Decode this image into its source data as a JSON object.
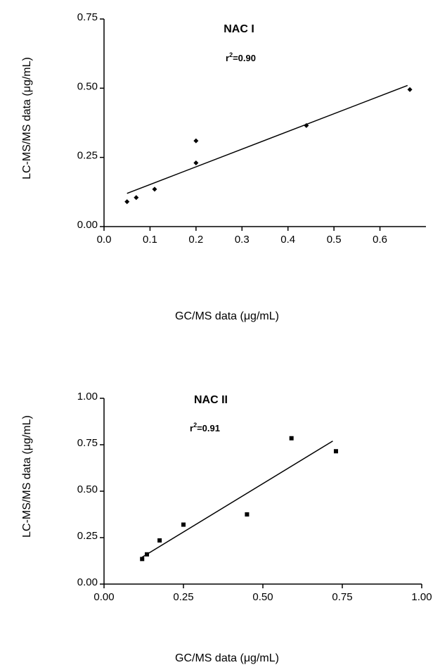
{
  "chart_data": [
    {
      "type": "scatter",
      "title": "NAC I",
      "annotation": {
        "prefix": "r",
        "superscript": "2",
        "value": "=0.90"
      },
      "xlabel": "GC/MS data (μg/mL)",
      "ylabel": "LC-MS/MS data (μg/mL)",
      "xlim": [
        0.0,
        0.7
      ],
      "ylim": [
        0.0,
        0.75
      ],
      "xticks": [
        0.0,
        0.1,
        0.2,
        0.3,
        0.4,
        0.5,
        0.6
      ],
      "xtick_labels": [
        "0.0",
        "0.1",
        "0.2",
        "0.3",
        "0.4",
        "0.5",
        "0.6"
      ],
      "yticks": [
        0.0,
        0.25,
        0.5,
        0.75
      ],
      "ytick_labels": [
        "0.00",
        "0.25",
        "0.50",
        "0.75"
      ],
      "marker": "diamond",
      "points": [
        {
          "x": 0.05,
          "y": 0.09
        },
        {
          "x": 0.07,
          "y": 0.105
        },
        {
          "x": 0.11,
          "y": 0.135
        },
        {
          "x": 0.2,
          "y": 0.23
        },
        {
          "x": 0.2,
          "y": 0.31
        },
        {
          "x": 0.44,
          "y": 0.365
        },
        {
          "x": 0.665,
          "y": 0.495
        }
      ],
      "fit_line": {
        "x": [
          0.05,
          0.66
        ],
        "y": [
          0.12,
          0.51
        ]
      }
    },
    {
      "type": "scatter",
      "title": "NAC II",
      "annotation": {
        "prefix": "r",
        "superscript": "2",
        "value": "=0.91"
      },
      "xlabel": "GC/MS data (μg/mL)",
      "ylabel": "LC-MS/MS data (μg/mL)",
      "xlim": [
        0.0,
        1.0
      ],
      "ylim": [
        0.0,
        1.0
      ],
      "xticks": [
        0.0,
        0.25,
        0.5,
        0.75,
        1.0
      ],
      "xtick_labels": [
        "0.00",
        "0.25",
        "0.50",
        "0.75",
        "1.00"
      ],
      "yticks": [
        0.0,
        0.25,
        0.5,
        0.75,
        1.0
      ],
      "ytick_labels": [
        "0.00",
        "0.25",
        "0.50",
        "0.75",
        "1.00"
      ],
      "marker": "square",
      "points": [
        {
          "x": 0.12,
          "y": 0.135
        },
        {
          "x": 0.135,
          "y": 0.16
        },
        {
          "x": 0.175,
          "y": 0.235
        },
        {
          "x": 0.25,
          "y": 0.32
        },
        {
          "x": 0.45,
          "y": 0.375
        },
        {
          "x": 0.59,
          "y": 0.785
        },
        {
          "x": 0.73,
          "y": 0.715
        }
      ],
      "fit_line": {
        "x": [
          0.12,
          0.72
        ],
        "y": [
          0.145,
          0.77
        ]
      }
    }
  ]
}
